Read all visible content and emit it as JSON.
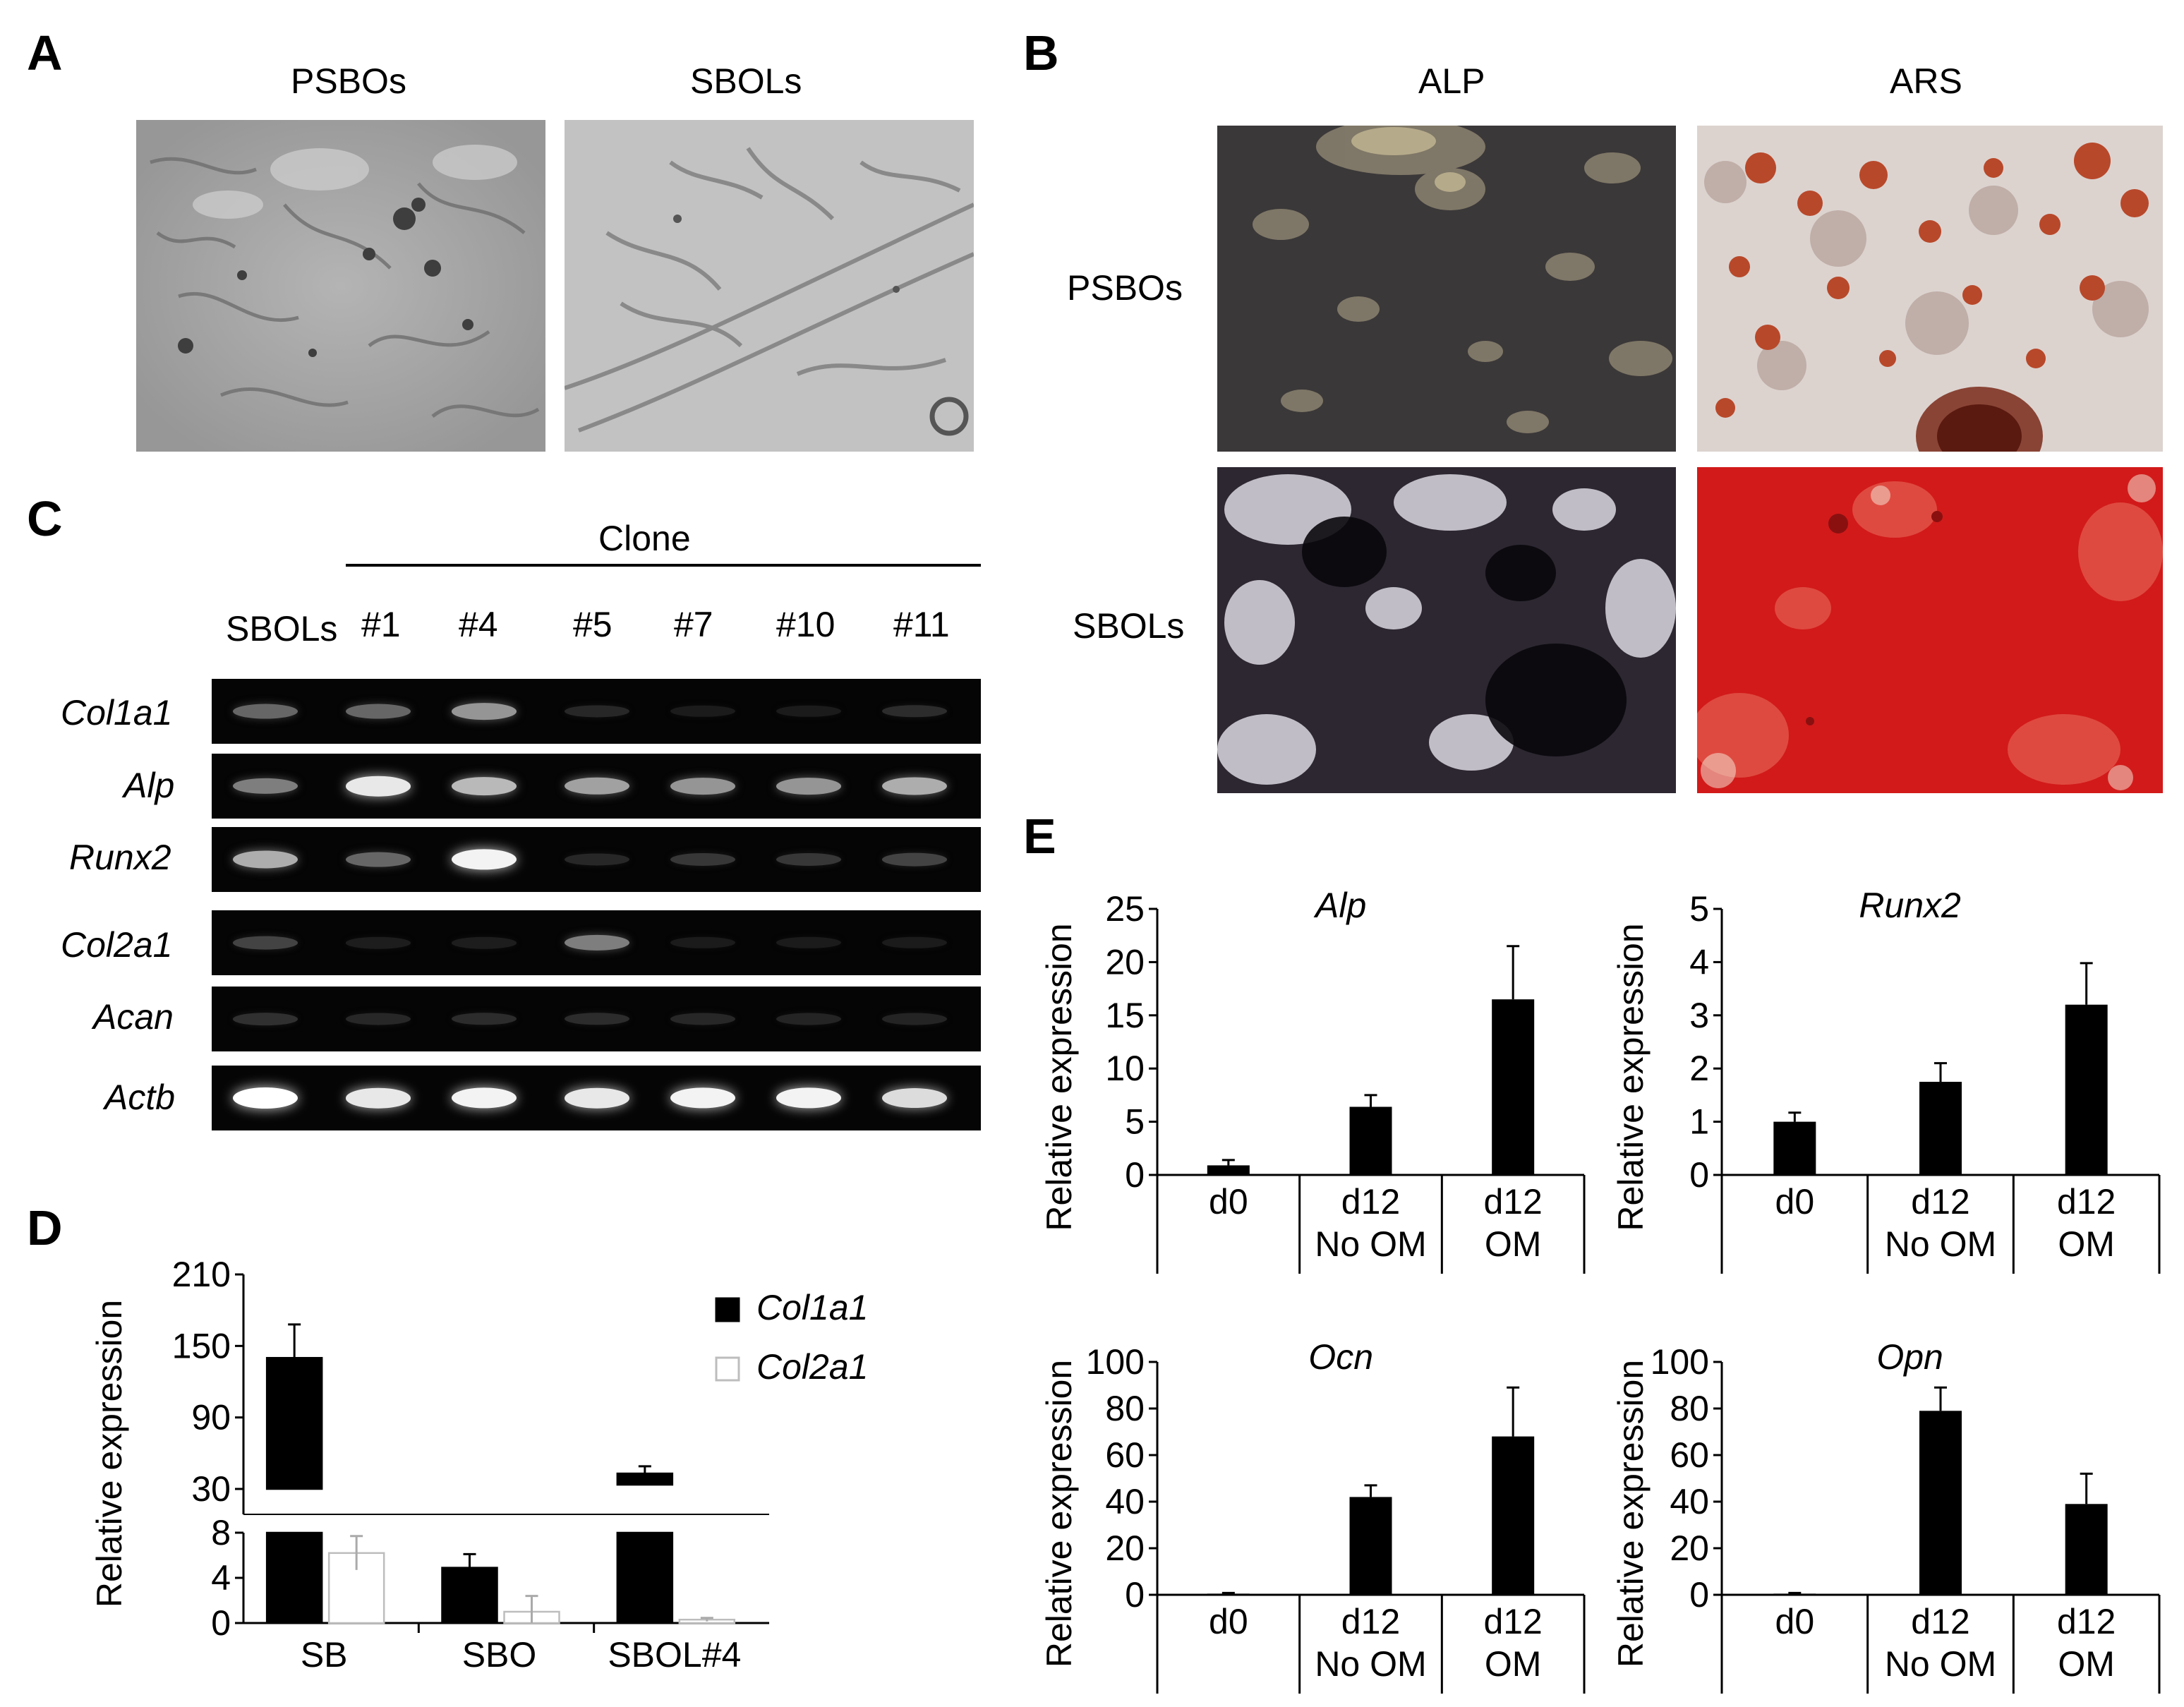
{
  "panels": {
    "A": {
      "letter": "A",
      "columns": [
        "PSBOs",
        "SBOLs"
      ]
    },
    "B": {
      "letter": "B",
      "columns": [
        "ALP",
        "ARS"
      ],
      "rows": [
        "PSBOs",
        "SBOLs"
      ]
    },
    "C": {
      "letter": "C",
      "group_label": "Clone",
      "lanes": [
        "SBOLs",
        "#1",
        "#4",
        "#5",
        "#7",
        "#10",
        "#11"
      ],
      "genes": [
        "Col1a1",
        "Alp",
        "Runx2",
        "Col2a1",
        "Acan",
        "Actb"
      ],
      "band_intensity": [
        [
          0.35,
          0.35,
          0.55,
          0.08,
          0.03,
          0.03,
          0.1
        ],
        [
          0.45,
          0.9,
          0.7,
          0.6,
          0.55,
          0.55,
          0.65
        ],
        [
          0.65,
          0.35,
          0.95,
          0.08,
          0.15,
          0.15,
          0.2
        ],
        [
          0.2,
          0.04,
          0.04,
          0.45,
          0.03,
          0.03,
          0.03
        ],
        [
          0.12,
          0.08,
          0.1,
          0.1,
          0.08,
          0.07,
          0.07
        ],
        [
          1.0,
          0.9,
          0.95,
          0.9,
          0.95,
          0.95,
          0.85
        ]
      ]
    },
    "D": {
      "letter": "D"
    },
    "E": {
      "letter": "E"
    }
  },
  "chart_data": [
    {
      "id": "D",
      "type": "bar",
      "ylabel": "Relative expression",
      "categories": [
        "SB",
        "SBO",
        "SBOL#4"
      ],
      "series": [
        {
          "name": "Col1a1",
          "values": [
            140,
            4.9,
            43
          ],
          "errors": [
            28,
            1.2,
            6
          ]
        },
        {
          "name": "Col2a1",
          "values": [
            6.2,
            1.0,
            0.3
          ],
          "errors": [
            1.5,
            1.4,
            0.15
          ]
        }
      ],
      "axis_break": true,
      "lower_ticks": [
        "0",
        "4",
        "8"
      ],
      "upper_ticks": [
        "30",
        "90",
        "150",
        "210"
      ],
      "legend": "top-right"
    },
    {
      "id": "E-Alp",
      "type": "bar",
      "title": "Alp",
      "ylabel": "Relative expression",
      "categories": [
        "d0",
        "d12\nNo OM",
        "d12\nOM"
      ],
      "values": [
        0.9,
        6.4,
        16.5
      ],
      "errors": [
        0.5,
        1.1,
        5.0
      ],
      "ylim": [
        0,
        25
      ],
      "yticks": [
        "0",
        "5",
        "10",
        "15",
        "20",
        "25"
      ]
    },
    {
      "id": "E-Runx2",
      "type": "bar",
      "title": "Runx2",
      "ylabel": "Relative expression",
      "categories": [
        "d0",
        "d12\nNo OM",
        "d12\nOM"
      ],
      "values": [
        1.0,
        1.75,
        3.2
      ],
      "errors": [
        0.17,
        0.35,
        0.78
      ],
      "ylim": [
        0,
        5
      ],
      "yticks": [
        "0",
        "1",
        "2",
        "3",
        "4",
        "5"
      ]
    },
    {
      "id": "E-Ocn",
      "type": "bar",
      "title": "Ocn",
      "ylabel": "Relative expression",
      "categories": [
        "d0",
        "d12\nNo OM",
        "d12\nOM"
      ],
      "values": [
        0.5,
        42,
        68
      ],
      "errors": [
        0.3,
        5,
        21
      ],
      "ylim": [
        0,
        100
      ],
      "yticks": [
        "0",
        "20",
        "40",
        "60",
        "80",
        "100"
      ]
    },
    {
      "id": "E-Opn",
      "type": "bar",
      "title": "Opn",
      "ylabel": "Relative expression",
      "categories": [
        "d0",
        "d12\nNo OM",
        "d12\nOM"
      ],
      "values": [
        0.5,
        79,
        39
      ],
      "errors": [
        0.3,
        10,
        13
      ],
      "ylim": [
        0,
        100
      ],
      "yticks": [
        "0",
        "20",
        "40",
        "60",
        "80",
        "100"
      ]
    }
  ]
}
